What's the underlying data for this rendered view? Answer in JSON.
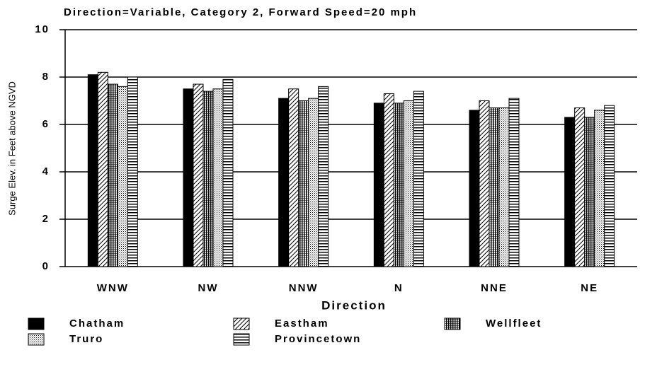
{
  "chart_data": {
    "type": "bar",
    "title": "Direction=Variable, Category 2, Forward Speed=20 mph",
    "xlabel": "Direction",
    "ylabel": "Surge Elev. in Feet above NGVD",
    "categories": [
      "WNW",
      "NW",
      "NNW",
      "N",
      "NNE",
      "NE"
    ],
    "series": [
      {
        "name": "Chatham",
        "color": "#000000",
        "pattern": "solid",
        "values": [
          8.1,
          7.5,
          7.1,
          6.9,
          6.6,
          6.3
        ]
      },
      {
        "name": "Eastham",
        "color": "#000000",
        "pattern": "diagonal",
        "values": [
          8.2,
          7.7,
          7.5,
          7.3,
          7.0,
          6.7
        ]
      },
      {
        "name": "Wellfleet",
        "color": "#000000",
        "pattern": "vertical",
        "values": [
          7.7,
          7.4,
          7.0,
          6.9,
          6.7,
          6.3
        ]
      },
      {
        "name": "Truro",
        "color": "#000000",
        "pattern": "dots",
        "values": [
          7.6,
          7.5,
          7.1,
          7.0,
          6.7,
          6.6
        ]
      },
      {
        "name": "Provincetown",
        "color": "#000000",
        "pattern": "horizontal",
        "values": [
          8.0,
          7.9,
          7.6,
          7.4,
          7.1,
          6.8
        ]
      }
    ],
    "ylim": [
      0,
      10
    ],
    "yticks": [
      0,
      2,
      4,
      6,
      8,
      10
    ],
    "grid": true
  }
}
